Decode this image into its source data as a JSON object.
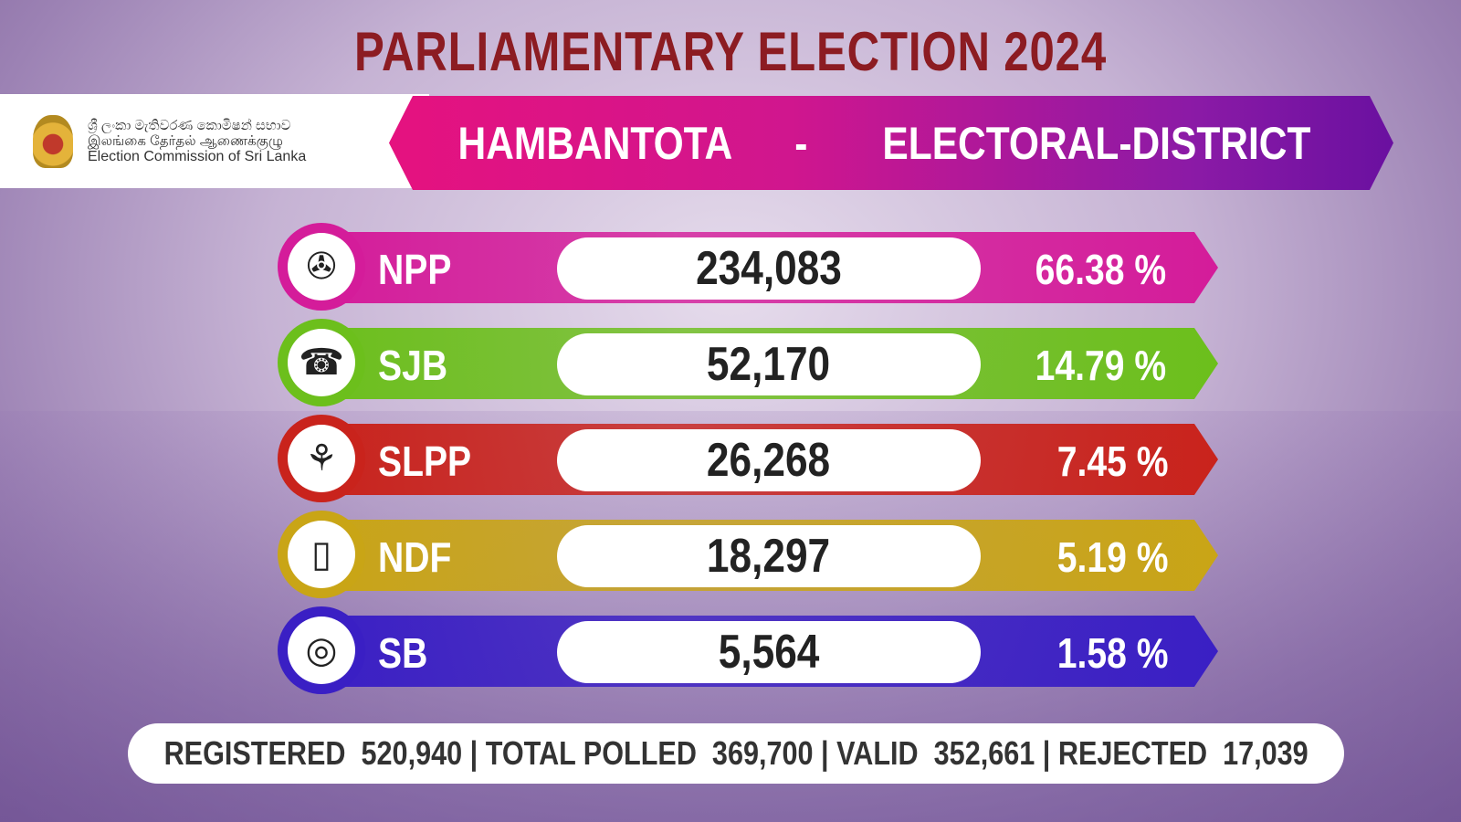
{
  "title": "PARLIAMENTARY ELECTION 2024",
  "commission": {
    "sinhala": "ශ්‍රී ලංකා මැතිවරණ කොමිෂන් සභාව",
    "tamil": "இலங்கை தேர்தல் ஆணைக்குழு",
    "english": "Election Commission of Sri Lanka"
  },
  "district": {
    "name": "HAMBANTOTA",
    "separator": "-",
    "type": "ELECTORAL-DISTRICT"
  },
  "results": [
    {
      "party": "NPP",
      "votes": "234,083",
      "percent": "66.38 %",
      "symbol": "compass-icon",
      "color": "#d41c9a"
    },
    {
      "party": "SJB",
      "votes": "52,170",
      "percent": "14.79 %",
      "symbol": "telephone-icon",
      "color": "#6cbf1c"
    },
    {
      "party": "SLPP",
      "votes": "26,268",
      "percent": "7.45 %",
      "symbol": "lotus-bud-icon",
      "color": "#c9231c"
    },
    {
      "party": "NDF",
      "votes": "18,297",
      "percent": "5.19 %",
      "symbol": "gas-cylinder-icon",
      "color": "#c9a516"
    },
    {
      "party": "SB",
      "votes": "5,564",
      "percent": "1.58 %",
      "symbol": "medal-icon",
      "color": "#3a1fc4"
    }
  ],
  "summary": {
    "registered_label": "REGISTERED",
    "registered": "520,940",
    "polled_label": "TOTAL POLLED",
    "polled": "369,700",
    "valid_label": "VALID",
    "valid": "352,661",
    "rejected_label": "REJECTED",
    "rejected": "17,039",
    "divider": "|"
  }
}
